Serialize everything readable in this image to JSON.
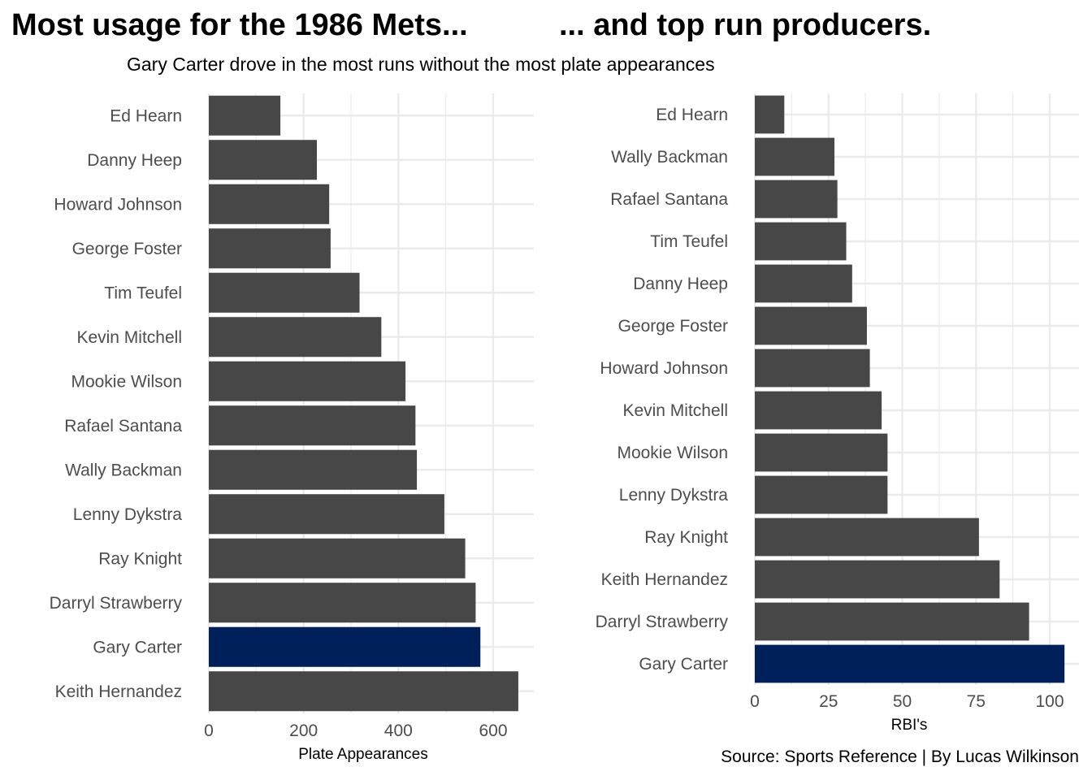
{
  "titles": {
    "left": "Most usage for the 1986 Mets...",
    "right": "... and top run producers.",
    "subtitle": "Gary Carter drove in the most runs without the most plate appearances",
    "caption": "Source: Sports Reference | By Lucas Wilkinson"
  },
  "colors": {
    "bar": "#474747",
    "highlight": "#00205b",
    "grid": "#ebebeb",
    "text": "#4d4d4d"
  },
  "chart_data": [
    {
      "type": "bar",
      "orientation": "horizontal",
      "xlabel": "Plate Appearances",
      "ylabel": "",
      "xlim": [
        0,
        680
      ],
      "ticks": [
        0,
        200,
        400,
        600
      ],
      "grid": true,
      "highlight": "Gary Carter",
      "categories": [
        "Ed Hearn",
        "Danny Heep",
        "Howard Johnson",
        "George Foster",
        "Tim Teufel",
        "Kevin Mitchell",
        "Mookie Wilson",
        "Rafael Santana",
        "Wally Backman",
        "Lenny Dykstra",
        "Ray Knight",
        "Darryl Strawberry",
        "Gary Carter",
        "Keith Hernandez"
      ],
      "values": [
        151,
        228,
        254,
        257,
        318,
        364,
        415,
        436,
        439,
        497,
        541,
        563,
        573,
        653
      ]
    },
    {
      "type": "bar",
      "orientation": "horizontal",
      "xlabel": "RBI's",
      "ylabel": "",
      "xlim": [
        0,
        110
      ],
      "ticks": [
        0,
        25,
        50,
        75,
        100
      ],
      "grid": true,
      "highlight": "Gary Carter",
      "categories": [
        "Ed Hearn",
        "Wally Backman",
        "Rafael Santana",
        "Tim Teufel",
        "Danny Heep",
        "George Foster",
        "Howard Johnson",
        "Kevin Mitchell",
        "Mookie Wilson",
        "Lenny Dykstra",
        "Ray Knight",
        "Keith Hernandez",
        "Darryl Strawberry",
        "Gary Carter"
      ],
      "values": [
        10,
        27,
        28,
        31,
        33,
        38,
        39,
        43,
        45,
        45,
        76,
        83,
        93,
        105
      ]
    }
  ]
}
